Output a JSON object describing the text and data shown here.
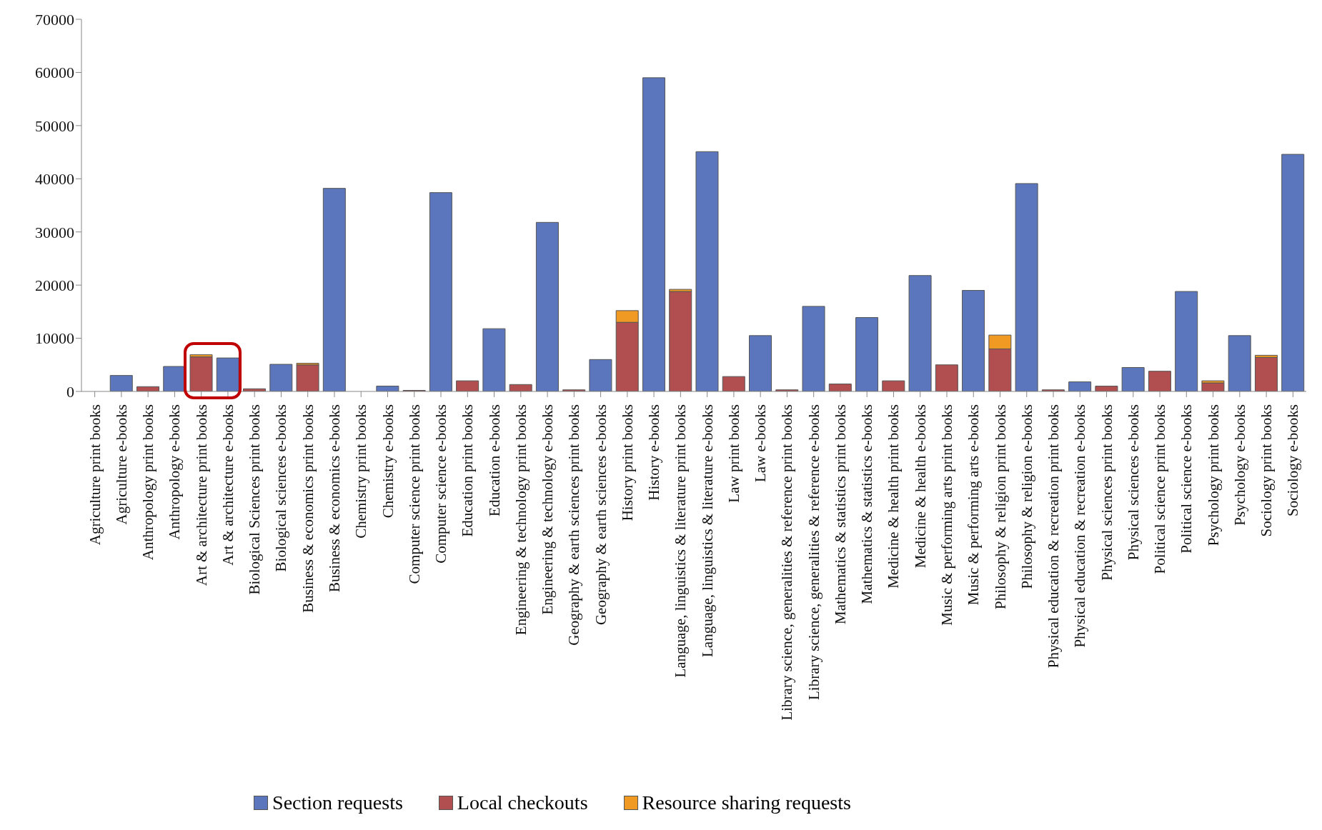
{
  "chart_data": {
    "type": "bar",
    "stacked": true,
    "legend": "bottom",
    "categories": [
      "Agriculture print books",
      "Agriculture e-books",
      "Anthropology print books",
      "Anthropology e-books",
      "Art & architecture print books",
      "Art & architecture e-books",
      "Biological Sciences print books",
      "Biological sciences e-books",
      "Business & economics print books",
      "Business & economics e-books",
      "Chemistry print books",
      "Chemistry e-books",
      "Computer science print books",
      "Computer science e-books",
      "Education print books",
      "Education e-books",
      "Engineering & technology print books",
      "Engineering & technology e-books",
      "Geography & earth sciences print books",
      "Geography & earth sciences e-books",
      "History print books",
      "History e-books",
      "Language, linguistics & literature print books",
      "Language, linguistics & literature e-books",
      "Law print books",
      "Law e-books",
      "Library science, generalities & reference print books",
      "Library science, generalities & reference e-books",
      "Mathematics & statistics print books",
      "Mathematics & statistics e-books",
      "Medicine & health print books",
      "Medicine & health e-books",
      "Music & performing arts print books",
      "Music & performing arts e-books",
      "Philosophy & religion print books",
      "Philosophy & religion e-books",
      "Physical education & recreation print books",
      "Physical education & recreation e-books",
      "Physical sciences print books",
      "Physical sciences e-books",
      "Political science print books",
      "Political science e-books",
      "Psychology print books",
      "Psychology e-books",
      "Sociology print books",
      "Sociology e-books"
    ],
    "series": [
      {
        "name": "Section requests",
        "color": "#5b76bd",
        "values": [
          null,
          3000,
          null,
          4700,
          null,
          6300,
          null,
          5100,
          null,
          38200,
          null,
          1000,
          null,
          37400,
          null,
          11800,
          null,
          31800,
          null,
          6000,
          null,
          59000,
          null,
          45100,
          null,
          10500,
          null,
          16000,
          null,
          13900,
          null,
          21800,
          null,
          19000,
          null,
          39100,
          null,
          1800,
          null,
          4500,
          null,
          18800,
          null,
          10500,
          null,
          44600
        ]
      },
      {
        "name": "Local checkouts",
        "color": "#b04e50",
        "values": [
          null,
          null,
          900,
          null,
          6500,
          null,
          500,
          null,
          5000,
          null,
          null,
          null,
          200,
          null,
          2000,
          null,
          1300,
          null,
          300,
          null,
          13000,
          null,
          18800,
          null,
          2800,
          null,
          300,
          null,
          1400,
          null,
          2000,
          null,
          5000,
          null,
          8000,
          null,
          300,
          null,
          1000,
          null,
          3800,
          null,
          1600,
          null,
          6400,
          null
        ]
      },
      {
        "name": "Resource sharing requests",
        "color": "#f09a24",
        "values": [
          0,
          null,
          0,
          null,
          400,
          null,
          0,
          null,
          300,
          null,
          0,
          null,
          0,
          null,
          0,
          null,
          0,
          null,
          0,
          null,
          2200,
          null,
          400,
          null,
          0,
          null,
          0,
          null,
          0,
          null,
          0,
          null,
          0,
          null,
          2600,
          null,
          0,
          null,
          0,
          null,
          0,
          null,
          400,
          null,
          400,
          null
        ]
      }
    ],
    "ylim": [
      0,
      70000
    ],
    "yticks": [
      0,
      10000,
      20000,
      30000,
      40000,
      50000,
      60000,
      70000
    ]
  }
}
